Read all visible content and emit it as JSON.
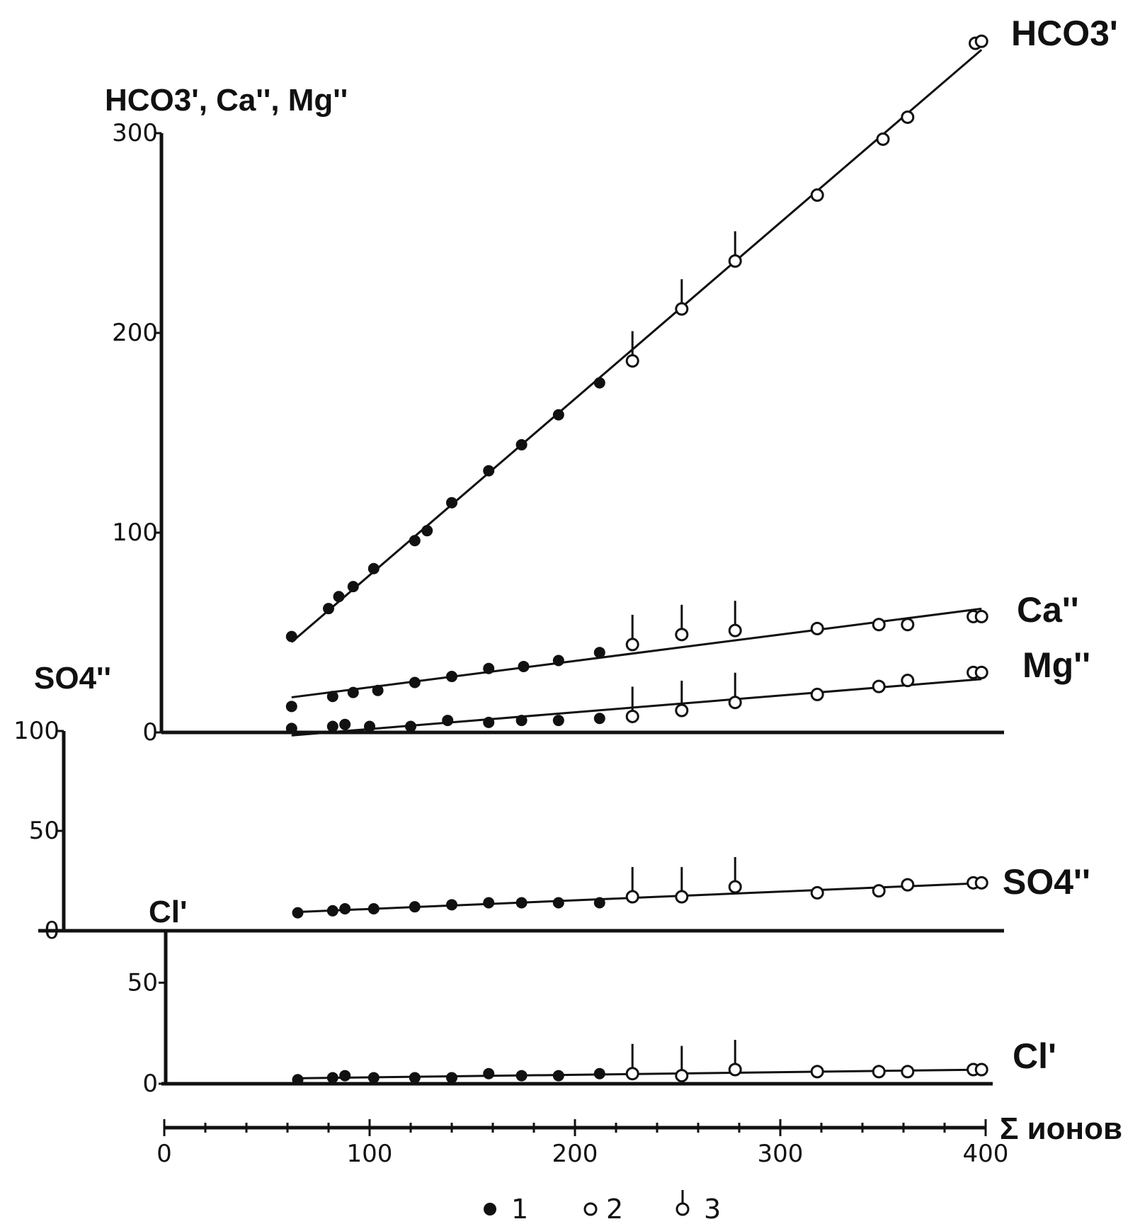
{
  "chart_data": [
    {
      "type": "scatter",
      "panel": "top",
      "title": "",
      "ylabel": "HCO3', Ca'', Mg''",
      "xlabel": "",
      "ylim": [
        0,
        300
      ],
      "yticks": [
        "0",
        "100",
        "200",
        "300"
      ],
      "series": [
        {
          "name": "HCO3'",
          "values": [
            {
              "x": 62,
              "y": 48,
              "type": 1
            },
            {
              "x": 80,
              "y": 62,
              "type": 1
            },
            {
              "x": 85,
              "y": 68,
              "type": 1
            },
            {
              "x": 92,
              "y": 73,
              "type": 1
            },
            {
              "x": 102,
              "y": 82,
              "type": 1
            },
            {
              "x": 122,
              "y": 96,
              "type": 1
            },
            {
              "x": 128,
              "y": 101,
              "type": 1
            },
            {
              "x": 140,
              "y": 115,
              "type": 1
            },
            {
              "x": 158,
              "y": 131,
              "type": 1
            },
            {
              "x": 174,
              "y": 144,
              "type": 1
            },
            {
              "x": 192,
              "y": 159,
              "type": 1
            },
            {
              "x": 212,
              "y": 175,
              "type": 1
            },
            {
              "x": 228,
              "y": 186,
              "type": 3
            },
            {
              "x": 252,
              "y": 212,
              "type": 3
            },
            {
              "x": 278,
              "y": 236,
              "type": 3
            },
            {
              "x": 318,
              "y": 269,
              "type": 2
            },
            {
              "x": 350,
              "y": 297,
              "type": 2
            },
            {
              "x": 362,
              "y": 308,
              "type": 2
            },
            {
              "x": 395,
              "y": 345,
              "type": 2
            },
            {
              "x": 398,
              "y": 346,
              "type": 2
            }
          ]
        },
        {
          "name": "Ca''",
          "values": [
            {
              "x": 62,
              "y": 13,
              "type": 1
            },
            {
              "x": 82,
              "y": 18,
              "type": 1
            },
            {
              "x": 92,
              "y": 20,
              "type": 1
            },
            {
              "x": 104,
              "y": 21,
              "type": 1
            },
            {
              "x": 122,
              "y": 25,
              "type": 1
            },
            {
              "x": 140,
              "y": 28,
              "type": 1
            },
            {
              "x": 158,
              "y": 32,
              "type": 1
            },
            {
              "x": 175,
              "y": 33,
              "type": 1
            },
            {
              "x": 192,
              "y": 36,
              "type": 1
            },
            {
              "x": 212,
              "y": 40,
              "type": 1
            },
            {
              "x": 228,
              "y": 44,
              "type": 3
            },
            {
              "x": 252,
              "y": 49,
              "type": 3
            },
            {
              "x": 278,
              "y": 51,
              "type": 3
            },
            {
              "x": 318,
              "y": 52,
              "type": 2
            },
            {
              "x": 348,
              "y": 54,
              "type": 2
            },
            {
              "x": 362,
              "y": 54,
              "type": 2
            },
            {
              "x": 394,
              "y": 58,
              "type": 2
            },
            {
              "x": 398,
              "y": 58,
              "type": 2
            }
          ]
        },
        {
          "name": "Mg''",
          "values": [
            {
              "x": 62,
              "y": 2,
              "type": 1
            },
            {
              "x": 82,
              "y": 3,
              "type": 1
            },
            {
              "x": 88,
              "y": 4,
              "type": 1
            },
            {
              "x": 100,
              "y": 3,
              "type": 1
            },
            {
              "x": 120,
              "y": 3,
              "type": 1
            },
            {
              "x": 138,
              "y": 6,
              "type": 1
            },
            {
              "x": 158,
              "y": 5,
              "type": 1
            },
            {
              "x": 174,
              "y": 6,
              "type": 1
            },
            {
              "x": 192,
              "y": 6,
              "type": 1
            },
            {
              "x": 212,
              "y": 7,
              "type": 1
            },
            {
              "x": 228,
              "y": 8,
              "type": 3
            },
            {
              "x": 252,
              "y": 11,
              "type": 3
            },
            {
              "x": 278,
              "y": 15,
              "type": 3
            },
            {
              "x": 318,
              "y": 19,
              "type": 2
            },
            {
              "x": 348,
              "y": 23,
              "type": 2
            },
            {
              "x": 362,
              "y": 26,
              "type": 2
            },
            {
              "x": 394,
              "y": 30,
              "type": 2
            },
            {
              "x": 398,
              "y": 30,
              "type": 2
            }
          ]
        }
      ]
    },
    {
      "type": "scatter",
      "panel": "middle",
      "title": "",
      "ylabel": "SO4''",
      "xlabel": "",
      "ylim": [
        0,
        100
      ],
      "yticks": [
        "0",
        "50",
        "100"
      ],
      "series": [
        {
          "name": "SO4''",
          "values": [
            {
              "x": 65,
              "y": 9,
              "type": 1
            },
            {
              "x": 82,
              "y": 10,
              "type": 1
            },
            {
              "x": 88,
              "y": 11,
              "type": 1
            },
            {
              "x": 102,
              "y": 11,
              "type": 1
            },
            {
              "x": 122,
              "y": 12,
              "type": 1
            },
            {
              "x": 140,
              "y": 13,
              "type": 1
            },
            {
              "x": 158,
              "y": 14,
              "type": 1
            },
            {
              "x": 174,
              "y": 14,
              "type": 1
            },
            {
              "x": 192,
              "y": 14,
              "type": 1
            },
            {
              "x": 212,
              "y": 14,
              "type": 1
            },
            {
              "x": 228,
              "y": 17,
              "type": 3
            },
            {
              "x": 252,
              "y": 17,
              "type": 3
            },
            {
              "x": 278,
              "y": 22,
              "type": 3
            },
            {
              "x": 318,
              "y": 19,
              "type": 2
            },
            {
              "x": 348,
              "y": 20,
              "type": 2
            },
            {
              "x": 362,
              "y": 23,
              "type": 2
            },
            {
              "x": 394,
              "y": 24,
              "type": 2
            },
            {
              "x": 398,
              "y": 24,
              "type": 2
            }
          ]
        }
      ]
    },
    {
      "type": "scatter",
      "panel": "bottom",
      "title": "",
      "ylabel": "Cl'",
      "xlabel": "Σ ионов",
      "ylim": [
        0,
        75
      ],
      "xlim": [
        0,
        400
      ],
      "yticks": [
        "0",
        "50"
      ],
      "xticks": [
        "0",
        "100",
        "200",
        "300",
        "400"
      ],
      "series": [
        {
          "name": "Cl'",
          "values": [
            {
              "x": 65,
              "y": 2,
              "type": 1
            },
            {
              "x": 82,
              "y": 3,
              "type": 1
            },
            {
              "x": 88,
              "y": 4,
              "type": 1
            },
            {
              "x": 102,
              "y": 3,
              "type": 1
            },
            {
              "x": 122,
              "y": 3,
              "type": 1
            },
            {
              "x": 140,
              "y": 3,
              "type": 1
            },
            {
              "x": 158,
              "y": 5,
              "type": 1
            },
            {
              "x": 174,
              "y": 4,
              "type": 1
            },
            {
              "x": 192,
              "y": 4,
              "type": 1
            },
            {
              "x": 212,
              "y": 5,
              "type": 1
            },
            {
              "x": 228,
              "y": 5,
              "type": 3
            },
            {
              "x": 252,
              "y": 4,
              "type": 3
            },
            {
              "x": 278,
              "y": 7,
              "type": 3
            },
            {
              "x": 318,
              "y": 6,
              "type": 2
            },
            {
              "x": 348,
              "y": 6,
              "type": 2
            },
            {
              "x": 362,
              "y": 6,
              "type": 2
            },
            {
              "x": 394,
              "y": 7,
              "type": 2
            },
            {
              "x": 398,
              "y": 7,
              "type": 2
            }
          ]
        }
      ]
    }
  ],
  "legend": {
    "items": [
      {
        "marker": "filled-circle",
        "label": "1"
      },
      {
        "marker": "open-circle",
        "label": "2"
      },
      {
        "marker": "open-circle-with-stem",
        "label": "3"
      }
    ],
    "position": "bottom-center"
  },
  "colors": {
    "ink": "#111111",
    "background": "#ffffff"
  }
}
